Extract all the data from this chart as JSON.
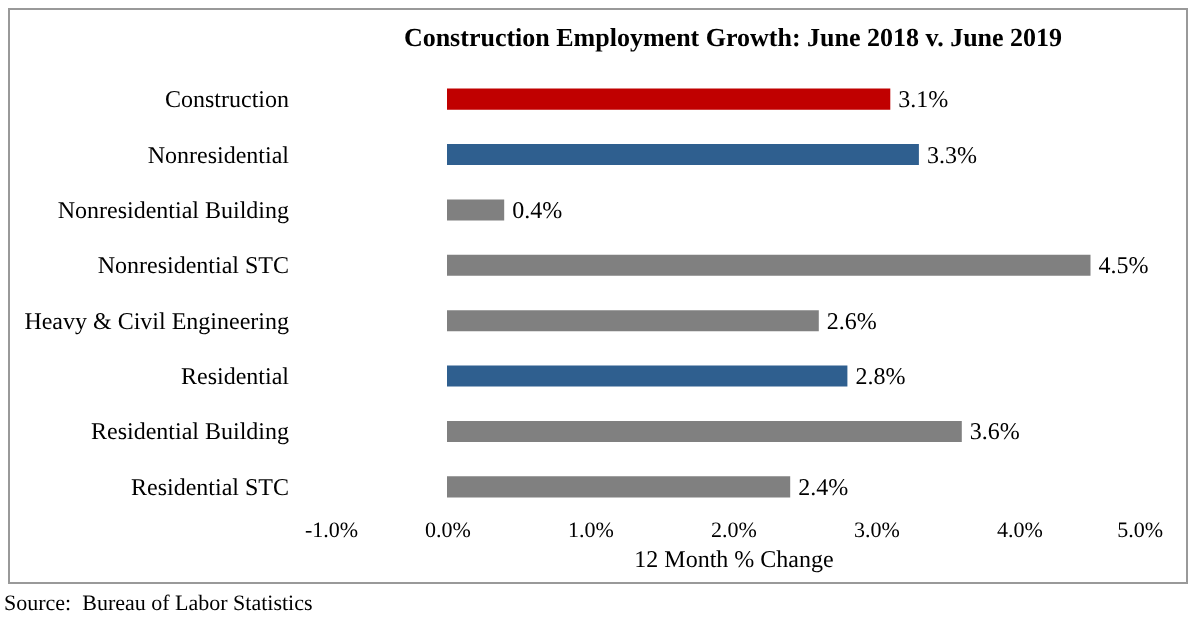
{
  "chart_data": {
    "type": "bar",
    "orientation": "horizontal",
    "title": "Construction Employment Growth: June 2018 v. June 2019",
    "xlabel": "12 Month % Change",
    "categories": [
      "Construction",
      "Nonresidential",
      "Nonresidential Building",
      "Nonresidential STC",
      "Heavy & Civil Engineering",
      "Residential",
      "Residential Building",
      "Residential STC"
    ],
    "values": [
      3.1,
      3.3,
      0.4,
      4.5,
      2.6,
      2.8,
      3.6,
      2.4
    ],
    "colors": [
      "#c00000",
      "#2f5f8f",
      "#808080",
      "#808080",
      "#808080",
      "#2f5f8f",
      "#808080",
      "#808080"
    ],
    "value_labels": [
      "3.1%",
      "3.3%",
      "0.4%",
      "4.5%",
      "2.6%",
      "2.8%",
      "3.6%",
      "2.4%"
    ],
    "xlim": [
      -1,
      5
    ],
    "xticks": [
      {
        "value": -1,
        "label": "-1.0%"
      },
      {
        "value": 0,
        "label": "0.0%"
      },
      {
        "value": 1,
        "label": "1.0%"
      },
      {
        "value": 2,
        "label": "2.0%"
      },
      {
        "value": 3,
        "label": "3.0%"
      },
      {
        "value": 4,
        "label": "4.0%"
      },
      {
        "value": 5,
        "label": "5.0%"
      }
    ],
    "grid": false,
    "annotations": [
      "Source:  Bureau of Labor Statistics"
    ]
  }
}
